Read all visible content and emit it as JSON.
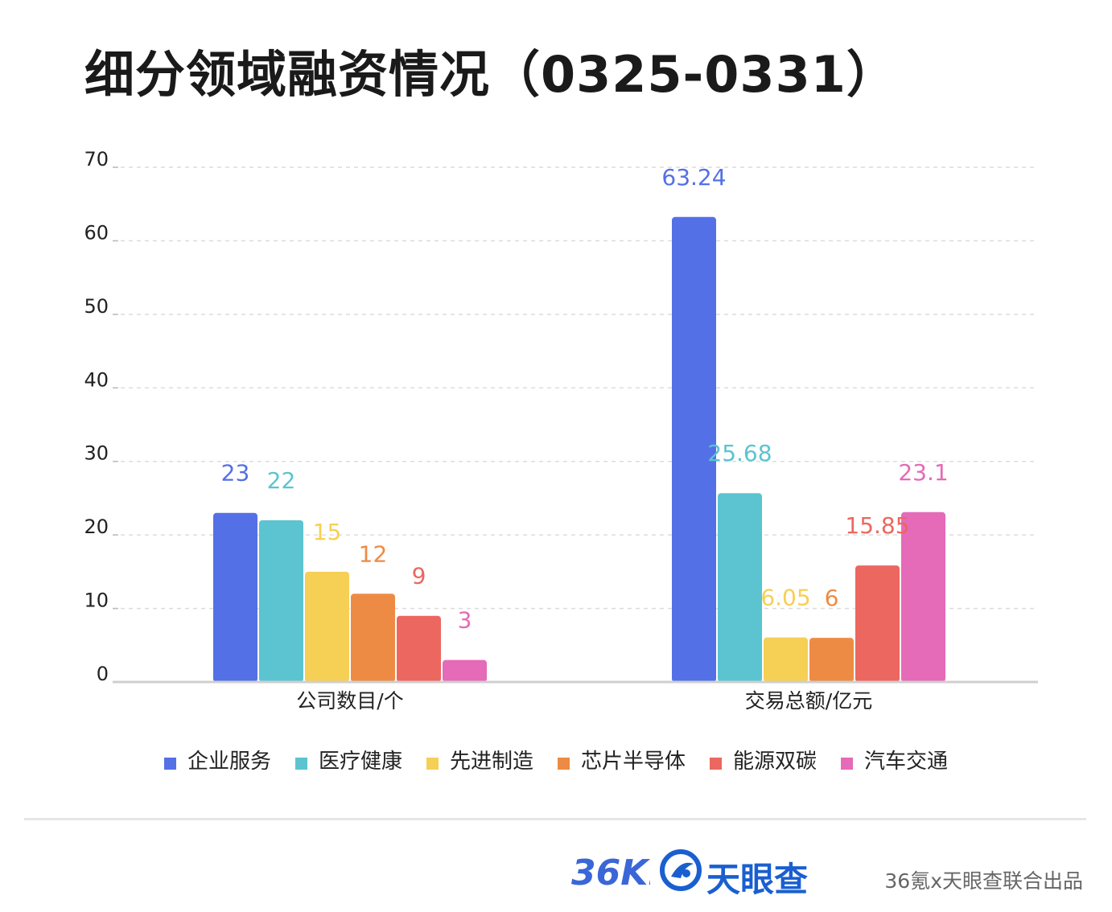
{
  "title": "细分领域融资情况（0325-0331）",
  "chart_data": {
    "type": "bar",
    "categories": [
      "公司数目/个",
      "交易总额/亿元"
    ],
    "series": [
      {
        "name": "企业服务",
        "color": "#5470e6",
        "values": [
          23,
          63.24
        ]
      },
      {
        "name": "医疗健康",
        "color": "#5bc4d0",
        "values": [
          22,
          25.68
        ]
      },
      {
        "name": "先进制造",
        "color": "#f6cf55",
        "values": [
          15,
          6.05
        ]
      },
      {
        "name": "芯片半导体",
        "color": "#ed8b45",
        "values": [
          12,
          6
        ]
      },
      {
        "name": "能源双碳",
        "color": "#eb6760",
        "values": [
          9,
          15.85
        ]
      },
      {
        "name": "汽车交通",
        "color": "#e56ab8",
        "values": [
          3,
          23.1
        ]
      }
    ],
    "ylim": [
      0,
      70
    ],
    "yticks": [
      0,
      10,
      20,
      30,
      40,
      50,
      60,
      70
    ],
    "xlabel": "",
    "ylabel": "",
    "grid": true,
    "legend_position": "bottom"
  },
  "footer": {
    "logo_36kr_text": "36Kr",
    "logo_tyc_text": "天眼查",
    "credit": "36氪x天眼查联合出品",
    "logo_36kr_color": "#3a66d8",
    "logo_tyc_color": "#1a5fd0"
  }
}
